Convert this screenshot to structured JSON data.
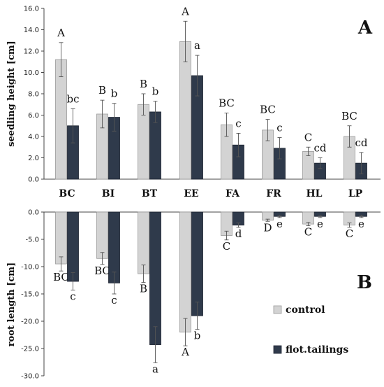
{
  "colors": {
    "control": "#d3d3d3",
    "control_stroke": "#9a9a9a",
    "tailings": "#2f3a4b",
    "tailings_stroke": "#1c2330",
    "error": "#555555"
  },
  "chart_data": [
    {
      "type": "bar",
      "panel_label": "A",
      "ylabel": "seedling height [cm]",
      "ylim": [
        0,
        16
      ],
      "yticks": [
        "0.0",
        "2.0",
        "4.0",
        "6.0",
        "8.0",
        "10.0",
        "12.0",
        "14.0",
        "16.0"
      ],
      "categories": [
        "BC",
        "BI",
        "BT",
        "EE",
        "FA",
        "FR",
        "HL",
        "LP"
      ],
      "series": [
        {
          "name": "control",
          "values": [
            11.2,
            6.1,
            7.0,
            12.9,
            5.1,
            4.6,
            2.6,
            4.0
          ],
          "errors": [
            1.6,
            1.3,
            1.0,
            1.9,
            1.1,
            1.0,
            0.4,
            1.0
          ],
          "labels": [
            "A",
            "B",
            "B",
            "A",
            "BC",
            "BC",
            "C",
            "BC"
          ]
        },
        {
          "name": "flot.tailings",
          "values": [
            5.0,
            5.8,
            6.3,
            9.7,
            3.2,
            2.9,
            1.5,
            1.5
          ],
          "errors": [
            1.6,
            1.3,
            1.0,
            1.9,
            1.1,
            1.0,
            0.5,
            1.0
          ],
          "labels": [
            "bc",
            "b",
            "b",
            "a",
            "c",
            "c",
            "cd",
            "cd"
          ]
        }
      ],
      "grid": false
    },
    {
      "type": "bar",
      "panel_label": "B",
      "ylabel": "root length [cm]",
      "ylim": [
        -30,
        0
      ],
      "yticks": [
        "0.0",
        "-5.0",
        "-10.0",
        "-15.0",
        "-20.0",
        "-25.0",
        "-30.0"
      ],
      "categories": [
        "BC",
        "BI",
        "BT",
        "EE",
        "FA",
        "FR",
        "HL",
        "LP"
      ],
      "series": [
        {
          "name": "control",
          "values": [
            -9.5,
            -8.5,
            -11.3,
            -22.0,
            -4.3,
            -1.5,
            -2.2,
            -2.4
          ],
          "errors": [
            1.3,
            1.1,
            1.6,
            2.5,
            0.8,
            0.2,
            0.3,
            0.4
          ],
          "labels": [
            "BC",
            "BC",
            "B",
            "A",
            "C",
            "D",
            "C",
            "C"
          ]
        },
        {
          "name": "flot.tailings",
          "values": [
            -12.7,
            -13.0,
            -24.3,
            -19.0,
            -2.4,
            -0.8,
            -0.8,
            -0.8
          ],
          "errors": [
            1.6,
            2.0,
            3.3,
            2.5,
            0.4,
            0.2,
            0.2,
            0.2
          ],
          "labels": [
            "c",
            "c",
            "a",
            "b",
            "d",
            "e",
            "e",
            "e"
          ]
        }
      ],
      "legend": {
        "placement": "right",
        "entries": [
          "control",
          "flot.tailings"
        ]
      },
      "grid": false
    }
  ]
}
